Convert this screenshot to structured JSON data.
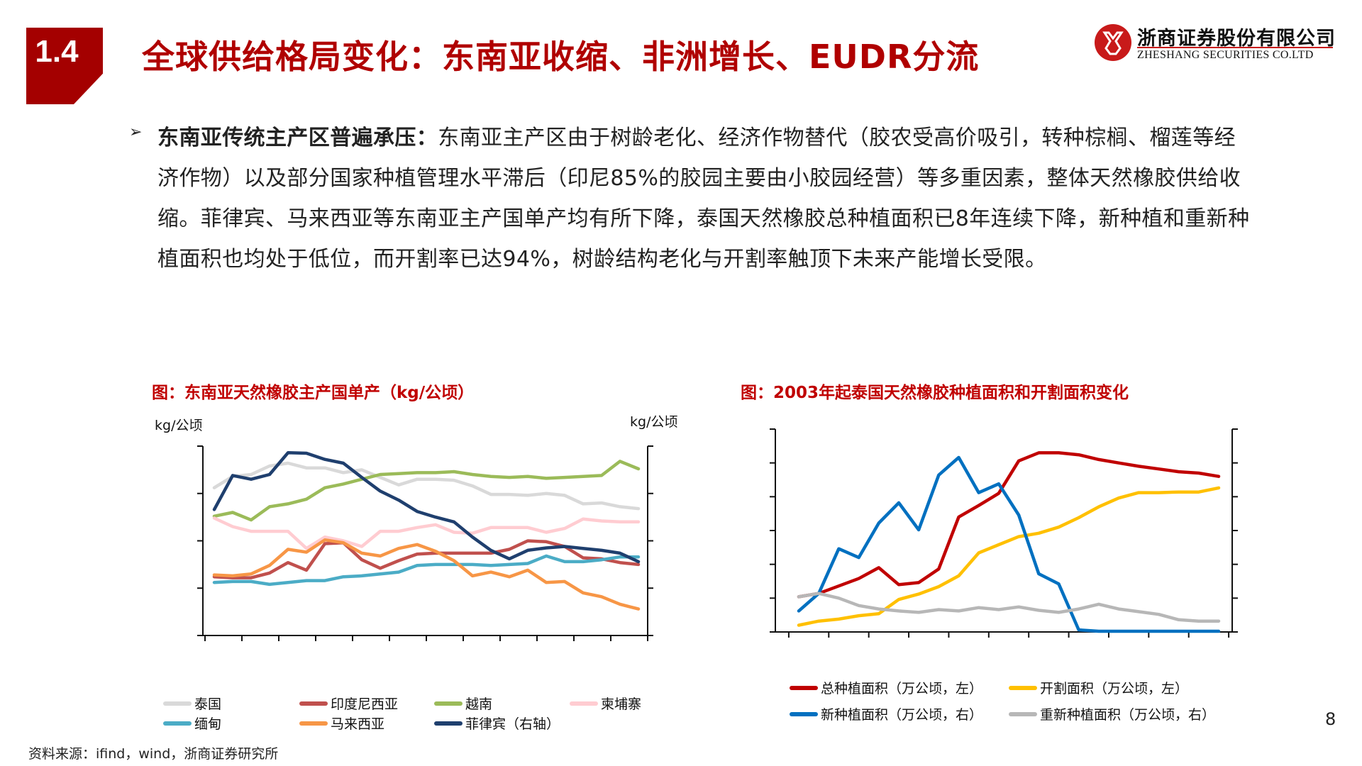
{
  "header": {
    "section_number": "1.4",
    "title": "全球供给格局变化：东南亚收缩、非洲增长、EUDR分流",
    "logo_cn": "浙商证券股份有限公司",
    "logo_en": "ZHESHANG SECURITIES CO.LTD"
  },
  "bullet": {
    "bold_lead": "东南亚传统主产区普遍承压：",
    "text": "东南亚主产区由于树龄老化、经济作物替代（胶农受高价吸引，转种棕榈、榴莲等经济作物）以及部分国家种植管理水平滞后（印尼85%的胶园主要由小胶园经营）等多重因素，整体天然橡胶供给收缩。菲律宾、马来西亚等东南亚主产国单产均有所下降，泰国天然橡胶总种植面积已8年连续下降，新种植和重新种植面积也均处于低位，而开割率已达94%，树龄结构老化与开割率触顶下未来产能增长受限。"
  },
  "source": "资料来源：ifind，wind，浙商证券研究所",
  "page_number": "8",
  "chart_data": [
    {
      "type": "line",
      "title": "图：东南亚天然橡胶主产国单产（kg/公顷）",
      "ylabel": "kg/公顷",
      "y2label": "kg/公顷",
      "ylim": [
        0,
        2000
      ],
      "y2lim": [
        0,
        4000
      ],
      "yticks": [
        "0",
        "500",
        "1000",
        "1500",
        "2000"
      ],
      "y2ticks": [
        "0",
        "1000",
        "2000",
        "3000",
        "4000"
      ],
      "x": [
        2000,
        2001,
        2002,
        2003,
        2004,
        2005,
        2006,
        2007,
        2008,
        2009,
        2010,
        2011,
        2012,
        2013,
        2014,
        2015,
        2016,
        2017,
        2018,
        2019,
        2020,
        2021,
        2022,
        2023
      ],
      "xticks": [
        "2000",
        "2002",
        "2004",
        "2006",
        "2008",
        "2010",
        "2012",
        "2014",
        "2016",
        "2018",
        "2020",
        "2022"
      ],
      "grid": false,
      "legend_position": "bottom",
      "series": [
        {
          "name": "泰国",
          "axis": "left",
          "color": "#d9d9d9",
          "values": [
            1560,
            1680,
            1700,
            1790,
            1820,
            1770,
            1770,
            1720,
            1750,
            1670,
            1590,
            1650,
            1650,
            1640,
            1580,
            1490,
            1490,
            1480,
            1500,
            1480,
            1390,
            1400,
            1360,
            1340
          ]
        },
        {
          "name": "印度尼西亚",
          "axis": "left",
          "color": "#c0504d",
          "values": [
            620,
            610,
            610,
            660,
            770,
            690,
            970,
            980,
            800,
            710,
            790,
            860,
            870,
            870,
            870,
            870,
            910,
            1000,
            990,
            940,
            820,
            810,
            770,
            750
          ]
        },
        {
          "name": "越南",
          "axis": "left",
          "color": "#9bbb59",
          "values": [
            1260,
            1300,
            1220,
            1360,
            1390,
            1440,
            1560,
            1600,
            1650,
            1700,
            1710,
            1720,
            1720,
            1730,
            1700,
            1680,
            1670,
            1680,
            1660,
            1670,
            1680,
            1690,
            1840,
            1760
          ]
        },
        {
          "name": "柬埔寨",
          "axis": "left",
          "color": "#ffccd1",
          "values": [
            1240,
            1150,
            1100,
            1100,
            1100,
            920,
            1040,
            1000,
            940,
            1100,
            1100,
            1140,
            1170,
            1090,
            1080,
            1140,
            1140,
            1140,
            1090,
            1130,
            1230,
            1210,
            1200,
            1200
          ]
        },
        {
          "name": "缅甸",
          "axis": "left",
          "color": "#4bacc6",
          "values": [
            560,
            570,
            570,
            540,
            560,
            580,
            580,
            620,
            630,
            650,
            670,
            740,
            750,
            750,
            750,
            740,
            750,
            760,
            840,
            780,
            780,
            800,
            830,
            830
          ]
        },
        {
          "name": "马来西亚",
          "axis": "left",
          "color": "#f79646",
          "values": [
            640,
            630,
            650,
            740,
            910,
            880,
            1010,
            980,
            870,
            840,
            920,
            960,
            890,
            790,
            630,
            670,
            620,
            690,
            560,
            570,
            450,
            410,
            330,
            280
          ]
        },
        {
          "name": "菲律宾（右轴）",
          "axis": "right",
          "color": "#1f3f6e",
          "values": [
            2660,
            3380,
            3300,
            3400,
            3860,
            3850,
            3720,
            3640,
            3340,
            3050,
            2860,
            2620,
            2500,
            2400,
            2080,
            1800,
            1620,
            1800,
            1850,
            1880,
            1840,
            1800,
            1740,
            1560
          ]
        }
      ]
    },
    {
      "type": "line",
      "title": "图：2003年起泰国天然橡胶种植面积和开割面积变化",
      "ylim": [
        150,
        450
      ],
      "y2lim": [
        0,
        30
      ],
      "yticks": [
        "150",
        "200",
        "250",
        "300",
        "350",
        "400",
        "450"
      ],
      "y2ticks": [
        "0",
        "5",
        "10",
        "15",
        "20",
        "25",
        "30"
      ],
      "x": [
        2003,
        2004,
        2005,
        2006,
        2007,
        2008,
        2009,
        2010,
        2011,
        2012,
        2013,
        2014,
        2015,
        2016,
        2017,
        2018,
        2019,
        2020,
        2021,
        2022,
        2023,
        2024
      ],
      "xticks": [
        "2003",
        "2005",
        "2007",
        "2009",
        "2011",
        "2013",
        "2015",
        "2017",
        "2019",
        "2021",
        "2023"
      ],
      "grid": false,
      "legend_position": "bottom",
      "series": [
        {
          "name": "总种植面积（万公顷，左）",
          "axis": "left",
          "color": "#c00000",
          "values": [
            202,
            207,
            218,
            229,
            245,
            220,
            223,
            243,
            320,
            337,
            355,
            403,
            415,
            415,
            412,
            405,
            400,
            395,
            391,
            387,
            385,
            380
          ]
        },
        {
          "name": "开割面积（万公顷，左）",
          "axis": "left",
          "color": "#ffc000",
          "values": [
            160,
            166,
            169,
            174,
            177,
            198,
            206,
            217,
            233,
            267,
            279,
            291,
            296,
            305,
            319,
            335,
            348,
            356,
            356,
            357,
            357,
            363
          ]
        },
        {
          "name": "新种植面积（万公顷，右）",
          "axis": "right",
          "color": "#0070c0",
          "values": [
            3.1,
            5.7,
            12.3,
            11.0,
            16.1,
            19.1,
            15.1,
            23.2,
            25.8,
            20.6,
            21.9,
            17.3,
            8.6,
            7.1,
            0.3,
            0.1,
            0.1,
            0.1,
            0.1,
            0.1,
            0.1,
            0.1
          ]
        },
        {
          "name": "重新种植面积（万公顷，右）",
          "axis": "right",
          "color": "#b7b7b7",
          "values": [
            5.2,
            5.7,
            5.0,
            3.9,
            3.4,
            3.1,
            2.9,
            3.3,
            3.1,
            3.6,
            3.3,
            3.7,
            3.2,
            2.9,
            3.4,
            4.1,
            3.4,
            3.0,
            2.6,
            1.8,
            1.6,
            1.6
          ]
        }
      ]
    }
  ]
}
